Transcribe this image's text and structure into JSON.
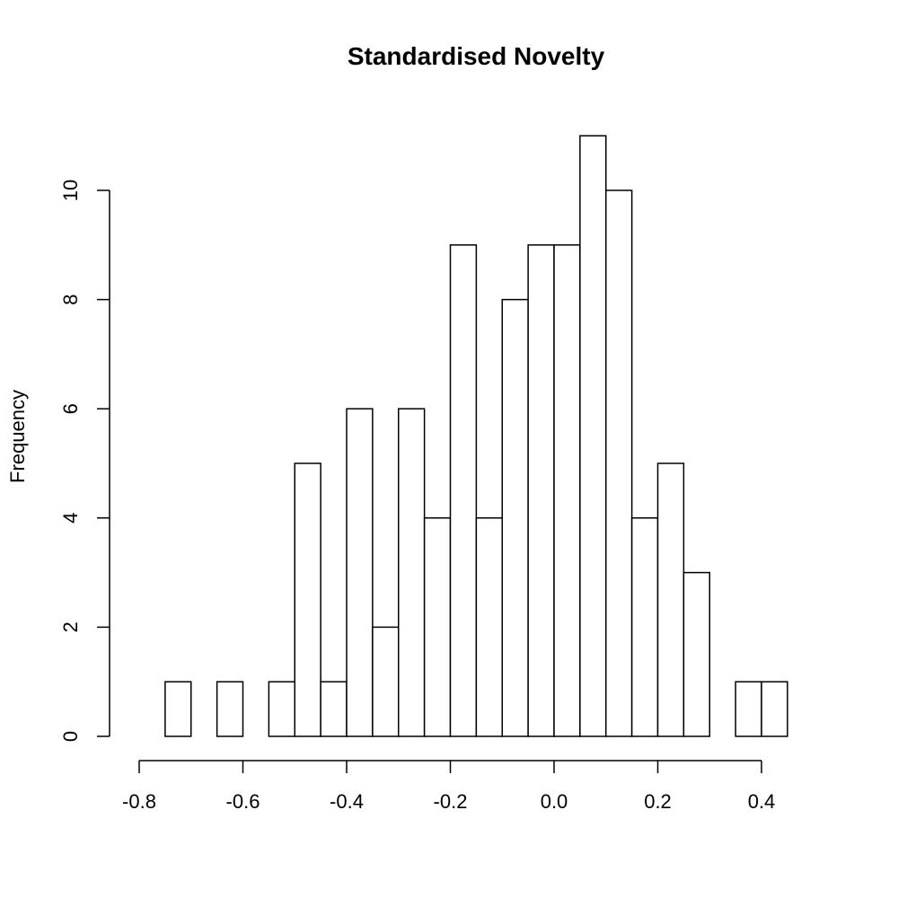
{
  "chart_data": {
    "type": "bar",
    "title": "Standardised Novelty",
    "xlabel": "",
    "ylabel": "Frequency",
    "bin_width": 0.05,
    "bin_starts": [
      -0.75,
      -0.7,
      -0.65,
      -0.6,
      -0.55,
      -0.5,
      -0.45,
      -0.4,
      -0.35,
      -0.3,
      -0.25,
      -0.2,
      -0.15,
      -0.1,
      -0.05,
      0.0,
      0.05,
      0.1,
      0.15,
      0.2,
      0.25,
      0.3,
      0.35,
      0.4
    ],
    "values": [
      1,
      0,
      1,
      0,
      1,
      5,
      1,
      6,
      2,
      6,
      4,
      9,
      4,
      8,
      9,
      9,
      11,
      10,
      4,
      5,
      3,
      0,
      1,
      1
    ],
    "xlim": [
      -0.8,
      0.45
    ],
    "ylim": [
      0,
      11
    ],
    "x_ticks": [
      -0.8,
      -0.6,
      -0.4,
      -0.2,
      0.0,
      0.2,
      0.4
    ],
    "x_tick_labels": [
      "-0.8",
      "-0.6",
      "-0.4",
      "-0.2",
      "0.0",
      "0.2",
      "0.4"
    ],
    "y_ticks": [
      0,
      2,
      4,
      6,
      8,
      10
    ],
    "y_tick_labels": [
      "0",
      "2",
      "4",
      "6",
      "8",
      "10"
    ],
    "grid": false,
    "legend": "none",
    "bar_fill": "#ffffff",
    "bar_stroke": "#000000"
  }
}
